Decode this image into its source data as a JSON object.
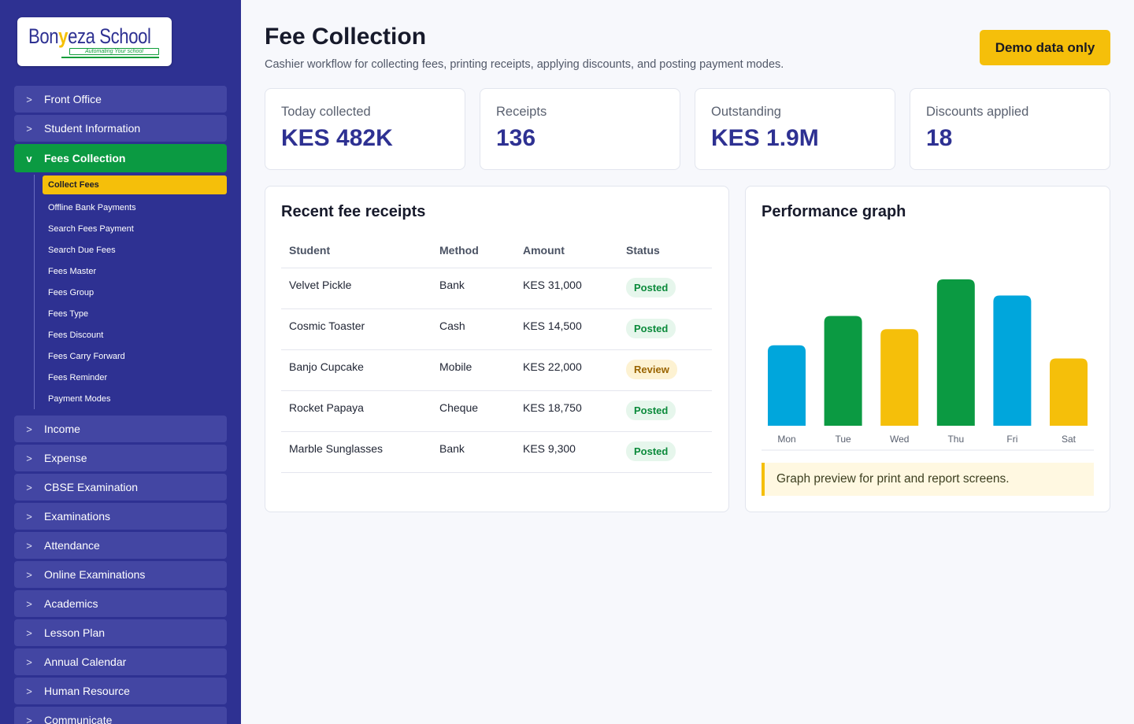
{
  "brand": {
    "logo_main": "Bon",
    "logo_mark": "y",
    "logo_rest": "eza School",
    "tagline": "Automating Your school"
  },
  "sidebar": {
    "items_top": [
      {
        "label": "Front Office",
        "chev": ">"
      },
      {
        "label": "Student Information",
        "chev": ">"
      }
    ],
    "active_item": {
      "label": "Fees Collection",
      "chev": "v"
    },
    "submenu": [
      {
        "label": "Collect Fees",
        "active": true
      },
      {
        "label": "Offline Bank Payments"
      },
      {
        "label": "Search Fees Payment"
      },
      {
        "label": "Search Due Fees"
      },
      {
        "label": "Fees Master"
      },
      {
        "label": "Fees Group"
      },
      {
        "label": "Fees Type"
      },
      {
        "label": "Fees Discount"
      },
      {
        "label": "Fees Carry Forward"
      },
      {
        "label": "Fees Reminder"
      },
      {
        "label": "Payment Modes"
      }
    ],
    "items_bottom": [
      {
        "label": "Income",
        "chev": ">"
      },
      {
        "label": "Expense",
        "chev": ">"
      },
      {
        "label": "CBSE Examination",
        "chev": ">"
      },
      {
        "label": "Examinations",
        "chev": ">"
      },
      {
        "label": "Attendance",
        "chev": ">"
      },
      {
        "label": "Online Examinations",
        "chev": ">"
      },
      {
        "label": "Academics",
        "chev": ">"
      },
      {
        "label": "Lesson Plan",
        "chev": ">"
      },
      {
        "label": "Annual Calendar",
        "chev": ">"
      },
      {
        "label": "Human Resource",
        "chev": ">"
      },
      {
        "label": "Communicate",
        "chev": ">"
      }
    ]
  },
  "header": {
    "title": "Fee Collection",
    "subtitle": "Cashier workflow for collecting fees, printing receipts, applying discounts, and posting payment modes.",
    "demo_label": "Demo data only"
  },
  "stats": [
    {
      "label": "Today collected",
      "value": "KES 482K"
    },
    {
      "label": "Receipts",
      "value": "136"
    },
    {
      "label": "Outstanding",
      "value": "KES 1.9M"
    },
    {
      "label": "Discounts applied",
      "value": "18"
    }
  ],
  "receipts": {
    "title": "Recent fee receipts",
    "columns": [
      "Student",
      "Method",
      "Amount",
      "Status"
    ],
    "rows": [
      {
        "student": "Velvet Pickle",
        "method": "Bank",
        "amount": "KES 31,000",
        "status": "Posted"
      },
      {
        "student": "Cosmic Toaster",
        "method": "Cash",
        "amount": "KES 14,500",
        "status": "Posted"
      },
      {
        "student": "Banjo Cupcake",
        "method": "Mobile",
        "amount": "KES 22,000",
        "status": "Review"
      },
      {
        "student": "Rocket Papaya",
        "method": "Cheque",
        "amount": "KES 18,750",
        "status": "Posted"
      },
      {
        "student": "Marble Sunglasses",
        "method": "Bank",
        "amount": "KES 9,300",
        "status": "Posted"
      }
    ]
  },
  "performance": {
    "title": "Performance graph",
    "note": "Graph preview for print and report screens."
  },
  "chart_data": {
    "type": "bar",
    "title": "Performance graph",
    "categories": [
      "Mon",
      "Tue",
      "Wed",
      "Thu",
      "Fri",
      "Sat"
    ],
    "values": [
      55,
      75,
      66,
      100,
      89,
      46
    ],
    "colors": [
      "#00a6dc",
      "#0b9a42",
      "#f5bf0a",
      "#0b9a42",
      "#00a6dc",
      "#f5bf0a"
    ],
    "ylim": [
      0,
      100
    ],
    "grid": false,
    "xlabel": "",
    "ylabel": ""
  },
  "colors": {
    "primary": "#2e3192",
    "accent_green": "#0b9a42",
    "accent_yellow": "#f5bf0a",
    "accent_blue": "#00a6dc"
  }
}
